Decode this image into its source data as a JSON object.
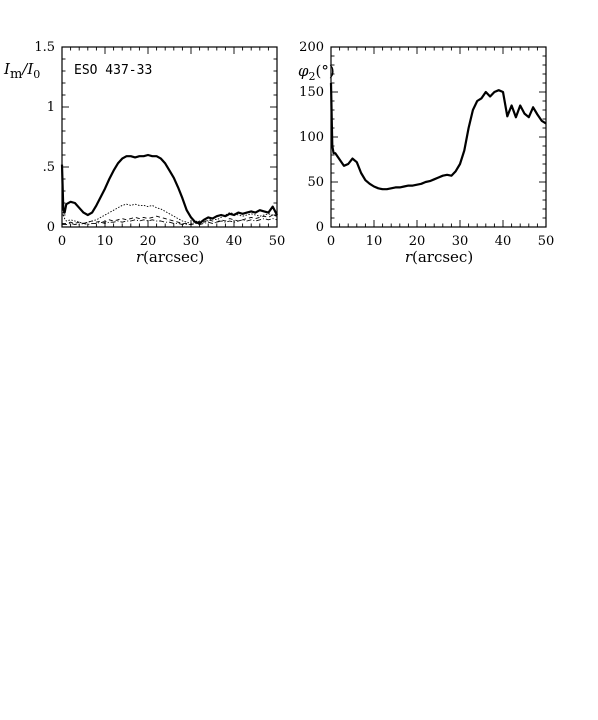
{
  "chart_data": [
    {
      "type": "line",
      "ylabel_main": "I",
      "ylabel_sub1": "m",
      "ylabel_slash": "/I",
      "ylabel_sub2": "0",
      "xlabel_var": "r",
      "xlabel_unit": "(arcsec)",
      "annotation": "ESO 437-33",
      "xlim": [
        0,
        50
      ],
      "ylim": [
        0,
        1.5
      ],
      "xticks": [
        0,
        10,
        20,
        30,
        40,
        50
      ],
      "xtick_labels": [
        "0",
        "10",
        "20",
        "30",
        "40",
        "50"
      ],
      "yticks": [
        0,
        0.5,
        1,
        1.5
      ],
      "ytick_labels": [
        "0",
        ".5",
        "1",
        "1.5"
      ],
      "series": [
        {
          "style": "thick-solid",
          "x": [
            0,
            0.3,
            0.6,
            1,
            2,
            3,
            4,
            5,
            6,
            7,
            8,
            9,
            10,
            11,
            12,
            13,
            14,
            15,
            16,
            17,
            18,
            19,
            20,
            21,
            22,
            23,
            24,
            25,
            26,
            27,
            28,
            29,
            30,
            31,
            32,
            33,
            34,
            35,
            36,
            37,
            38,
            39,
            40,
            41,
            42,
            43,
            44,
            45,
            46,
            47,
            48,
            49,
            50
          ],
          "y": [
            0.52,
            0.15,
            0.12,
            0.19,
            0.21,
            0.2,
            0.16,
            0.12,
            0.1,
            0.12,
            0.18,
            0.25,
            0.32,
            0.4,
            0.47,
            0.53,
            0.57,
            0.59,
            0.59,
            0.58,
            0.59,
            0.59,
            0.6,
            0.59,
            0.59,
            0.57,
            0.53,
            0.47,
            0.41,
            0.33,
            0.24,
            0.14,
            0.08,
            0.04,
            0.03,
            0.06,
            0.08,
            0.07,
            0.09,
            0.1,
            0.09,
            0.11,
            0.1,
            0.12,
            0.11,
            0.12,
            0.13,
            0.12,
            0.14,
            0.13,
            0.12,
            0.17,
            0.1
          ]
        },
        {
          "style": "dotted",
          "x": [
            0,
            0.3,
            0.6,
            1,
            2,
            3,
            4,
            5,
            6,
            7,
            8,
            9,
            10,
            11,
            12,
            13,
            14,
            15,
            16,
            17,
            18,
            19,
            20,
            21,
            22,
            23,
            24,
            25,
            26,
            27,
            28,
            29,
            30,
            31,
            32,
            33,
            34,
            35,
            36,
            37,
            38,
            39,
            40,
            41,
            42,
            43,
            44,
            45,
            46,
            47,
            48,
            49,
            50
          ],
          "y": [
            0.3,
            0.1,
            0.07,
            0.05,
            0.06,
            0.05,
            0.04,
            0.03,
            0.04,
            0.05,
            0.06,
            0.08,
            0.1,
            0.12,
            0.14,
            0.16,
            0.18,
            0.19,
            0.18,
            0.19,
            0.18,
            0.18,
            0.17,
            0.18,
            0.16,
            0.15,
            0.13,
            0.11,
            0.09,
            0.07,
            0.05,
            0.04,
            0.03,
            0.05,
            0.04,
            0.06,
            0.05,
            0.07,
            0.06,
            0.08,
            0.1,
            0.12,
            0.11,
            0.1,
            0.09,
            0.1,
            0.11,
            0.1,
            0.09,
            0.1,
            0.11,
            0.1,
            0.09
          ]
        },
        {
          "style": "dashed",
          "x": [
            0,
            1,
            2,
            3,
            4,
            5,
            6,
            7,
            8,
            9,
            10,
            11,
            12,
            13,
            14,
            15,
            16,
            17,
            18,
            19,
            20,
            21,
            22,
            23,
            24,
            25,
            26,
            27,
            28,
            29,
            30,
            31,
            32,
            33,
            34,
            35,
            36,
            37,
            38,
            39,
            40,
            41,
            42,
            43,
            44,
            45,
            46,
            47,
            48,
            49,
            50
          ],
          "y": [
            0.03,
            0.03,
            0.04,
            0.03,
            0.04,
            0.03,
            0.04,
            0.05,
            0.04,
            0.05,
            0.04,
            0.06,
            0.05,
            0.06,
            0.07,
            0.06,
            0.07,
            0.08,
            0.07,
            0.08,
            0.07,
            0.08,
            0.09,
            0.08,
            0.07,
            0.06,
            0.05,
            0.04,
            0.03,
            0.03,
            0.02,
            0.03,
            0.05,
            0.04,
            0.06,
            0.05,
            0.04,
            0.06,
            0.05,
            0.07,
            0.06,
            0.05,
            0.06,
            0.07,
            0.08,
            0.07,
            0.08,
            0.09,
            0.08,
            0.1,
            0.09
          ]
        },
        {
          "style": "dash-dot",
          "x": [
            0,
            1,
            2,
            3,
            4,
            5,
            6,
            7,
            8,
            9,
            10,
            11,
            12,
            13,
            14,
            15,
            16,
            17,
            18,
            19,
            20,
            21,
            22,
            23,
            24,
            25,
            26,
            27,
            28,
            29,
            30,
            31,
            32,
            33,
            34,
            35,
            36,
            37,
            38,
            39,
            40,
            41,
            42,
            43,
            44,
            45,
            46,
            47,
            48,
            49,
            50
          ],
          "y": [
            0.02,
            0.02,
            0.03,
            0.02,
            0.02,
            0.03,
            0.02,
            0.03,
            0.03,
            0.04,
            0.03,
            0.04,
            0.04,
            0.05,
            0.04,
            0.05,
            0.05,
            0.06,
            0.05,
            0.06,
            0.05,
            0.06,
            0.05,
            0.05,
            0.04,
            0.04,
            0.03,
            0.03,
            0.02,
            0.02,
            0.02,
            0.03,
            0.02,
            0.03,
            0.04,
            0.03,
            0.04,
            0.05,
            0.04,
            0.05,
            0.04,
            0.05,
            0.06,
            0.05,
            0.06,
            0.05,
            0.06,
            0.07,
            0.06,
            0.07,
            0.06
          ]
        }
      ]
    },
    {
      "type": "line",
      "ylabel_main": "φ",
      "ylabel_sub1": "2",
      "ylabel_unit": "(°)",
      "xlabel_var": "r",
      "xlabel_unit": "(arcsec)",
      "xlim": [
        0,
        50
      ],
      "ylim": [
        0,
        200
      ],
      "xticks": [
        0,
        10,
        20,
        30,
        40,
        50
      ],
      "xtick_labels": [
        "0",
        "10",
        "20",
        "30",
        "40",
        "50"
      ],
      "yticks": [
        0,
        50,
        100,
        150,
        200
      ],
      "ytick_labels": [
        "0",
        "50",
        "100",
        "150",
        "200"
      ],
      "series": [
        {
          "style": "thick-solid",
          "x": [
            0,
            0.3,
            0.6,
            1,
            2,
            3,
            4,
            5,
            6,
            7,
            8,
            9,
            10,
            11,
            12,
            13,
            14,
            15,
            16,
            17,
            18,
            19,
            20,
            21,
            22,
            23,
            24,
            25,
            26,
            27,
            28,
            29,
            30,
            31,
            32,
            33,
            34,
            35,
            36,
            37,
            38,
            39,
            40,
            41,
            42,
            43,
            44,
            45,
            46,
            47,
            48,
            49,
            50
          ],
          "y": [
            160,
            90,
            82,
            82,
            75,
            68,
            70,
            76,
            72,
            60,
            52,
            48,
            45,
            43,
            42,
            42,
            43,
            44,
            44,
            45,
            46,
            46,
            47,
            48,
            50,
            51,
            53,
            55,
            57,
            58,
            57,
            62,
            70,
            85,
            110,
            130,
            140,
            143,
            150,
            145,
            150,
            152,
            150,
            123,
            135,
            122,
            135,
            126,
            122,
            133,
            125,
            118,
            115
          ]
        }
      ]
    }
  ]
}
